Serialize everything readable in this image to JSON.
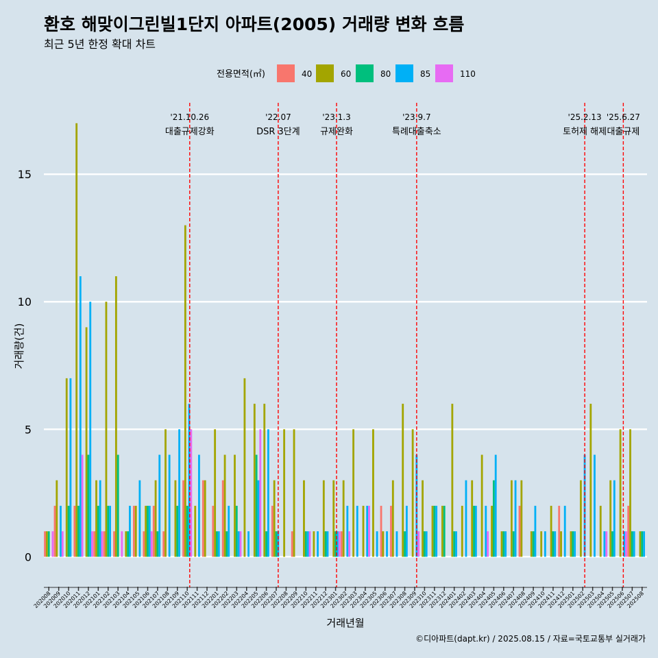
{
  "chart_data": {
    "type": "bar",
    "title": "환호 해맞이그린빌1단지 아파트(2005) 거래량 변화 흐름",
    "subtitle": "최근 5년 한정 확대 차트",
    "xlabel": "거래년월",
    "ylabel": "거래량(건)",
    "caption": "©디아파트(dapt.kr) / 2025.08.15 / 자료=국토교통부 실거래가",
    "legend_title": "전용면적(㎡)",
    "legend_position": "top",
    "grid": true,
    "ylim": [
      -1.2,
      17.8
    ],
    "y_ticks": [
      0,
      5,
      10,
      15
    ],
    "categories": [
      "202008",
      "202009",
      "202010",
      "202011",
      "202012",
      "202101",
      "202102",
      "202103",
      "202104",
      "202105",
      "202106",
      "202107",
      "202108",
      "202109",
      "202110",
      "202111",
      "202112",
      "202201",
      "202202",
      "202203",
      "202204",
      "202205",
      "202206",
      "202207",
      "202208",
      "202209",
      "202210",
      "202211",
      "202212",
      "202301",
      "202302",
      "202303",
      "202304",
      "202305",
      "202306",
      "202307",
      "202308",
      "202309",
      "202310",
      "202311",
      "202312",
      "202401",
      "202402",
      "202403",
      "202404",
      "202405",
      "202406",
      "202407",
      "202408",
      "202409",
      "202410",
      "202411",
      "202412",
      "202501",
      "202502",
      "202503",
      "202504",
      "202505",
      "202506",
      "202507",
      "202508"
    ],
    "series": [
      {
        "name": "40",
        "color": "#f8766d",
        "values": [
          1,
          2,
          0,
          2,
          0,
          1,
          1,
          1,
          0,
          2,
          1,
          2,
          1,
          0,
          3,
          0,
          3,
          2,
          3,
          0,
          0,
          0,
          0,
          2,
          0,
          1,
          0,
          0,
          0,
          0,
          1,
          0,
          0,
          0,
          2,
          2,
          0,
          0,
          0,
          0,
          0,
          0,
          0,
          0,
          0,
          0,
          0,
          0,
          2,
          0,
          0,
          0,
          2,
          0,
          0,
          0,
          0,
          0,
          0,
          2,
          0
        ]
      },
      {
        "name": "60",
        "color": "#a3a500",
        "values": [
          1,
          3,
          7,
          17,
          9,
          3,
          10,
          11,
          1,
          2,
          2,
          3,
          5,
          3,
          13,
          2,
          3,
          5,
          4,
          4,
          7,
          6,
          6,
          3,
          5,
          5,
          3,
          1,
          3,
          3,
          3,
          5,
          2,
          5,
          1,
          3,
          6,
          5,
          3,
          2,
          2,
          6,
          2,
          3,
          4,
          2,
          1,
          3,
          3,
          1,
          1,
          2,
          1,
          1,
          3,
          6,
          2,
          3,
          5,
          5,
          1
        ]
      },
      {
        "name": "80",
        "color": "#00bf7d",
        "values": [
          1,
          0,
          2,
          2,
          4,
          2,
          2,
          4,
          1,
          0,
          2,
          1,
          0,
          2,
          2,
          0,
          0,
          1,
          1,
          2,
          0,
          4,
          1,
          1,
          0,
          0,
          1,
          0,
          1,
          1,
          0,
          0,
          0,
          0,
          0,
          0,
          1,
          0,
          1,
          2,
          2,
          1,
          0,
          2,
          0,
          3,
          1,
          1,
          0,
          1,
          0,
          1,
          0,
          1,
          0,
          0,
          0,
          1,
          0,
          1,
          1
        ]
      },
      {
        "name": "85",
        "color": "#00b0f6",
        "values": [
          0,
          2,
          7,
          11,
          10,
          3,
          2,
          0,
          2,
          3,
          2,
          4,
          4,
          5,
          6,
          4,
          0,
          1,
          2,
          1,
          1,
          3,
          5,
          1,
          0,
          0,
          1,
          1,
          1,
          1,
          2,
          2,
          2,
          1,
          1,
          1,
          2,
          4,
          1,
          2,
          0,
          1,
          3,
          2,
          2,
          4,
          1,
          3,
          0,
          2,
          1,
          1,
          2,
          1,
          4,
          4,
          1,
          3,
          1,
          1,
          1
        ]
      },
      {
        "name": "110",
        "color": "#e76bf3",
        "values": [
          1,
          1,
          0,
          4,
          1,
          1,
          0,
          1,
          0,
          0,
          1,
          0,
          0,
          0,
          5,
          0,
          0,
          0,
          0,
          1,
          0,
          5,
          0,
          0,
          0,
          0,
          1,
          0,
          0,
          1,
          1,
          0,
          2,
          0,
          0,
          0,
          0,
          1,
          0,
          0,
          0,
          0,
          0,
          0,
          1,
          0,
          0,
          0,
          0,
          0,
          0,
          0,
          0,
          0,
          0,
          0,
          1,
          0,
          1,
          0,
          0
        ]
      }
    ],
    "annotations": [
      {
        "x_index": 14.25,
        "date": "'21.10.26",
        "label": "대출규제강화"
      },
      {
        "x_index": 23.2,
        "date": "'22.07",
        "label": "DSR 3단계"
      },
      {
        "x_index": 29.1,
        "date": "'23.1.3",
        "label": "규제완화"
      },
      {
        "x_index": 37.2,
        "date": "'23.9.7",
        "label": "특례대출축소"
      },
      {
        "x_index": 54.2,
        "date": "'25.2.13",
        "label": "토허제 해제"
      },
      {
        "x_index": 58.1,
        "date": "'25.6.27",
        "label": "대출규제"
      }
    ]
  }
}
